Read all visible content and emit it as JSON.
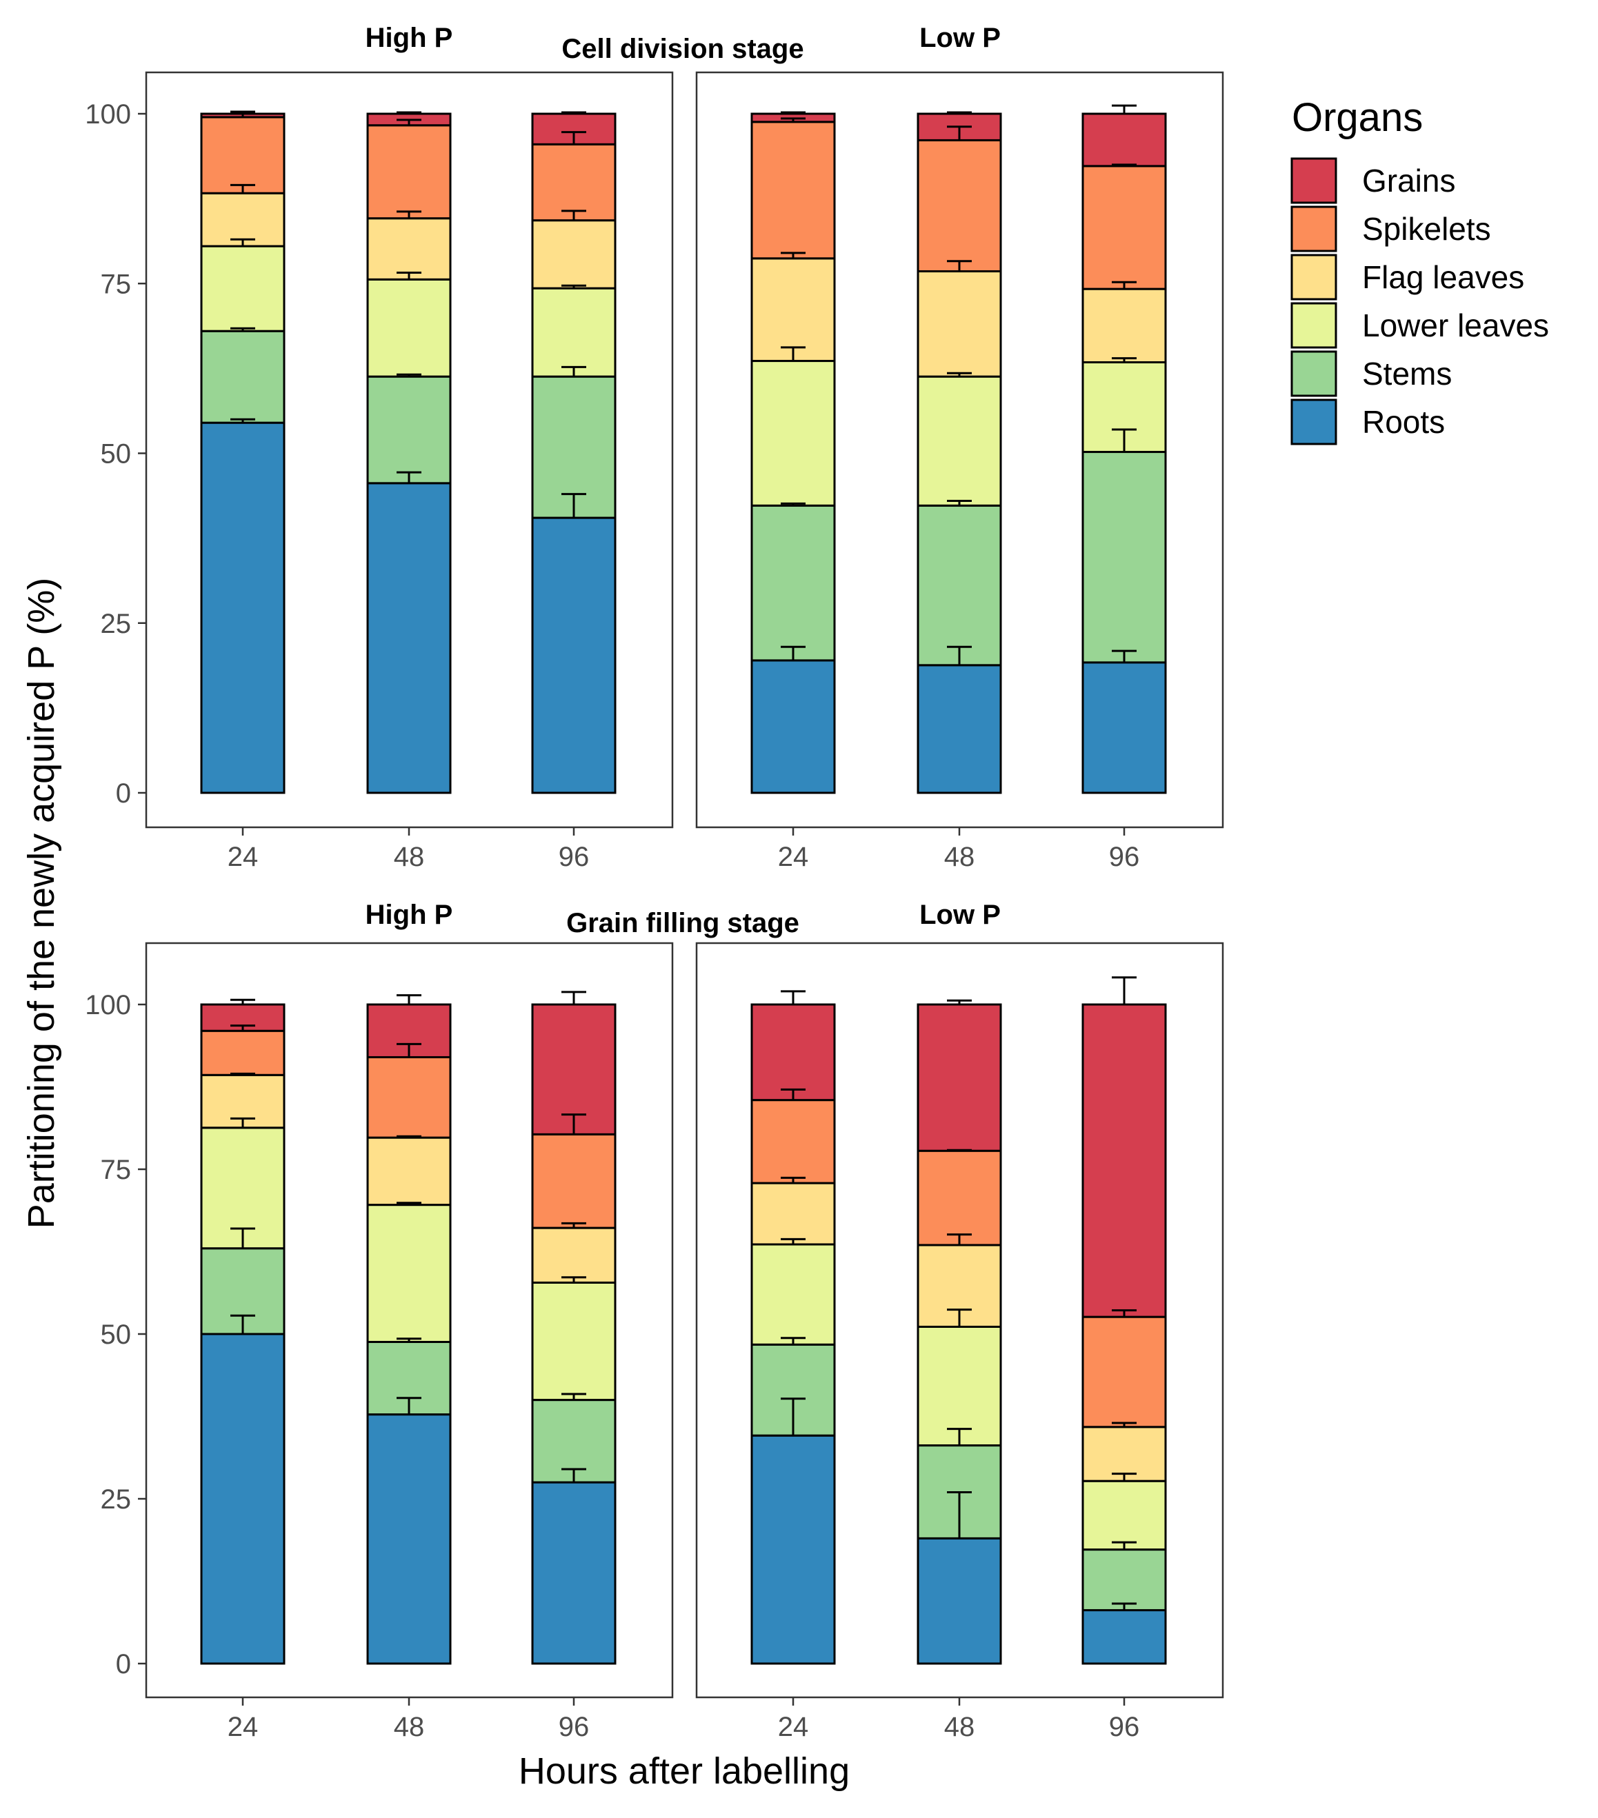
{
  "chart_data": {
    "type": "stacked_bar",
    "xlabel": "Hours after labelling",
    "ylabel": "Partitioning of the newly acquired P (%)",
    "ylim": [
      0,
      105
    ],
    "yticks": [
      0,
      25,
      50,
      75,
      100
    ],
    "categories": [
      "24",
      "48",
      "96"
    ],
    "legend": {
      "title": "Organs",
      "items": [
        {
          "name": "Grains",
          "color": "#d53e4f"
        },
        {
          "name": "Spikelets",
          "color": "#fc8d59"
        },
        {
          "name": "Flag leaves",
          "color": "#fee08b"
        },
        {
          "name": "Lower leaves",
          "color": "#e6f598"
        },
        {
          "name": "Stems",
          "color": "#99d594"
        },
        {
          "name": "Roots",
          "color": "#3288bd"
        }
      ]
    },
    "stack_order": [
      "Roots",
      "Stems",
      "Lower leaves",
      "Flag leaves",
      "Spikelets",
      "Grains"
    ],
    "stages": [
      {
        "title": "Cell division stage",
        "panels": [
          {
            "title": "High P",
            "bars": [
              {
                "x": "24",
                "cumulative": [
                  54.5,
                  68.0,
                  80.5,
                  88.3,
                  99.5,
                  100
                ],
                "errors": [
                  0.5,
                  0.4,
                  1.0,
                  1.2,
                  0.6,
                  0.3
                ]
              },
              {
                "x": "48",
                "cumulative": [
                  45.6,
                  61.3,
                  75.6,
                  84.6,
                  98.3,
                  100
                ],
                "errors": [
                  1.6,
                  0.3,
                  1.0,
                  1.0,
                  0.8,
                  0.2
                ]
              },
              {
                "x": "96",
                "cumulative": [
                  40.5,
                  61.3,
                  74.3,
                  84.3,
                  95.5,
                  100
                ],
                "errors": [
                  3.5,
                  1.4,
                  0.4,
                  1.4,
                  1.8,
                  0.2
                ]
              }
            ]
          },
          {
            "title": "Low P",
            "bars": [
              {
                "x": "24",
                "cumulative": [
                  19.5,
                  42.3,
                  63.6,
                  78.7,
                  98.8,
                  100
                ],
                "errors": [
                  2.0,
                  0.3,
                  2.0,
                  0.8,
                  0.5,
                  0.2
                ]
              },
              {
                "x": "48",
                "cumulative": [
                  18.8,
                  42.3,
                  61.3,
                  76.8,
                  96.1,
                  100
                ],
                "errors": [
                  2.7,
                  0.7,
                  0.5,
                  1.5,
                  2.0,
                  0.2
                ]
              },
              {
                "x": "96",
                "cumulative": [
                  19.2,
                  50.2,
                  63.4,
                  74.2,
                  92.3,
                  100
                ],
                "errors": [
                  1.7,
                  3.3,
                  0.6,
                  1.0,
                  0.2,
                  1.2
                ]
              }
            ]
          }
        ]
      },
      {
        "title": "Grain filling stage",
        "panels": [
          {
            "title": "High P",
            "bars": [
              {
                "x": "24",
                "cumulative": [
                  50.0,
                  63.0,
                  81.3,
                  89.3,
                  96.0,
                  100
                ],
                "errors": [
                  2.8,
                  3.0,
                  1.4,
                  0.2,
                  0.8,
                  0.7
                ]
              },
              {
                "x": "48",
                "cumulative": [
                  37.8,
                  48.8,
                  69.6,
                  79.8,
                  92.0,
                  100
                ],
                "errors": [
                  2.5,
                  0.5,
                  0.3,
                  0.2,
                  2.0,
                  1.4
                ]
              },
              {
                "x": "96",
                "cumulative": [
                  27.5,
                  40.0,
                  57.8,
                  66.1,
                  80.3,
                  100
                ],
                "errors": [
                  2.0,
                  0.9,
                  0.8,
                  0.7,
                  3.0,
                  1.9
                ]
              }
            ]
          },
          {
            "title": "Low P",
            "bars": [
              {
                "x": "24",
                "cumulative": [
                  34.6,
                  48.4,
                  63.6,
                  72.9,
                  85.5,
                  100
                ],
                "errors": [
                  5.6,
                  1.0,
                  0.8,
                  0.8,
                  1.6,
                  2.0
                ]
              },
              {
                "x": "48",
                "cumulative": [
                  19.0,
                  33.1,
                  51.1,
                  63.5,
                  77.8,
                  100
                ],
                "errors": [
                  7.0,
                  2.5,
                  2.6,
                  1.6,
                  0.1,
                  0.6
                ]
              },
              {
                "x": "96",
                "cumulative": [
                  8.1,
                  17.3,
                  27.7,
                  35.9,
                  52.6,
                  100
                ],
                "errors": [
                  1.0,
                  1.1,
                  1.1,
                  0.6,
                  1.0,
                  4.1
                ]
              }
            ]
          }
        ]
      }
    ]
  }
}
